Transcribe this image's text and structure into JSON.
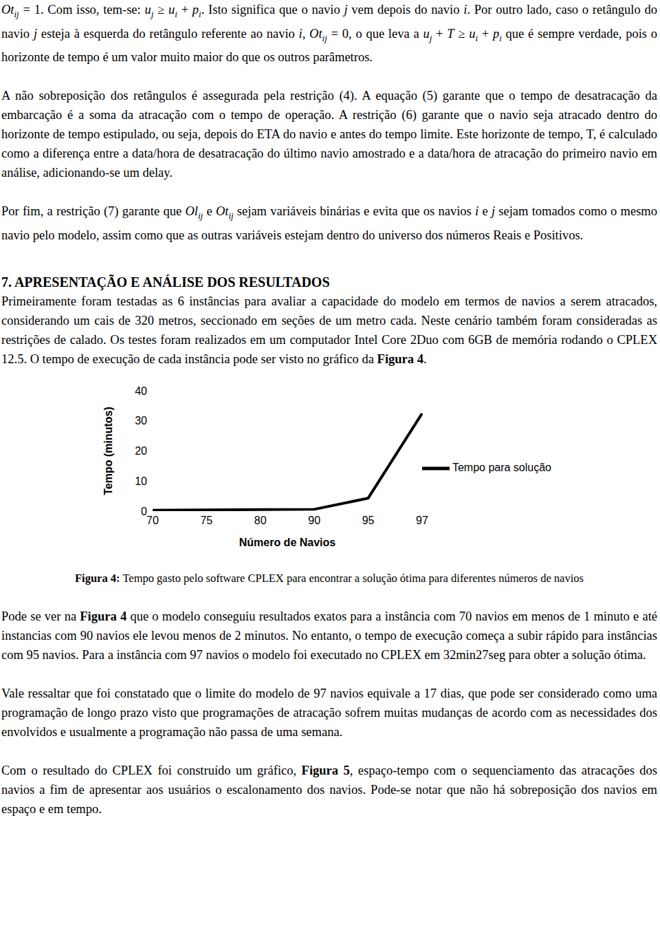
{
  "document": {
    "paragraphs_before": [
      [
        {
          "m": "Ot",
          "sub": "ij"
        },
        " = 1. Com isso, tem-se: ",
        {
          "m": "u",
          "sub": "j"
        },
        " ≥ ",
        {
          "m": "u",
          "sub": "i"
        },
        " + ",
        {
          "m": "p",
          "sub": "i"
        },
        ". Isto significa que o navio ",
        {
          "m": "j"
        },
        " vem depois do navio ",
        {
          "m": "i"
        },
        ". Por outro lado, caso o retângulo do navio ",
        {
          "m": "j"
        },
        " esteja à esquerda do retângulo referente ao navio ",
        {
          "m": "i"
        },
        ", ",
        {
          "m": "Ot",
          "sub": "ij"
        },
        " = 0, o que leva a ",
        {
          "m": "u",
          "sub": "j"
        },
        " + ",
        {
          "m": "T"
        },
        " ≥ ",
        {
          "m": "u",
          "sub": "i"
        },
        " + ",
        {
          "m": "p",
          "sub": "i"
        },
        " que é sempre verdade, pois o horizonte de tempo é um valor muito maior do que os outros parâmetros."
      ],
      [
        "A não sobreposição dos retângulos é assegurada pela restrição (4). A equação (5) garante que o tempo de desatracação da embarcação é a soma da atracação com o tempo de operação. A restrição (6) garante que o navio seja atracado dentro do horizonte de tempo estipulado, ou seja, depois do ETA do navio e antes do tempo limite. Este horizonte de tempo, T, é calculado como a diferença entre a data/hora de desatracação do último navio amostrado e a data/hora de atracação do primeiro navio em análise, adicionando-se um delay."
      ],
      [
        "Por fim, a restrição (7) garante que ",
        {
          "m": "Ol",
          "sub": "ij"
        },
        " e ",
        {
          "m": "Ot",
          "sub": "ij"
        },
        " sejam variáveis binárias e evita que os navios ",
        {
          "m": "i"
        },
        " e ",
        {
          "m": "j"
        },
        " sejam tomados como o mesmo navio pelo modelo, assim como que as outras variáveis estejam dentro do universo dos números Reais e Positivos."
      ]
    ],
    "heading": "7. APRESENTAÇÃO E ANÁLISE DOS RESULTADOS",
    "paragraph_after_heading": [
      "Primeiramente foram testadas as 6 instâncias para avaliar a capacidade do modelo em termos de navios a serem atracados, considerando um cais de 320 metros, seccionado em seções de um metro cada. Neste cenário também foram consideradas as restrições de calado. Os testes foram realizados em um computador Intel Core 2Duo com 6GB de memória rodando o CPLEX 12.5. O tempo de execução de cada instância pode ser visto no gráfico da ",
      {
        "b": "Figura 4"
      },
      "."
    ],
    "caption": [
      {
        "b": "Figura 4:"
      },
      " Tempo gasto pelo software CPLEX para encontrar a solução ótima para diferentes números de navios"
    ],
    "paragraphs_after": [
      [
        "Pode se ver na ",
        {
          "b": "Figura 4"
        },
        " que o modelo conseguiu resultados exatos para a instância com 70 navios em menos de 1 minuto e até instancias com 90 navios ele levou menos de 2 minutos. No entanto, o tempo de execução começa a subir rápido para instâncias com 95 navios. Para a instância com 97 navios o modelo foi executado no CPLEX em 32min27seg para obter a solução ótima."
      ],
      [
        "Vale ressaltar que foi constatado que o limite do modelo de 97 navios equivale a 17 dias, que pode ser considerado como uma programação de longo prazo visto que programações de atracação sofrem muitas mudanças de acordo com as necessidades dos envolvidos e usualmente a programação não passa de uma semana."
      ],
      [
        "Com o resultado do CPLEX foi construído um gráfico, ",
        {
          "b": "Figura 5"
        },
        ", espaço-tempo com o sequenciamento das atracações dos navios a fim de apresentar aos usuários o escalonamento dos navios. Pode-se notar que não há sobreposição dos navios em espaço e em tempo."
      ]
    ]
  },
  "chart_data": {
    "type": "line",
    "x_label": "Número de Navios",
    "y_label": "Tempo (minutos)",
    "categories": [
      "70",
      "75",
      "80",
      "90",
      "95",
      "97"
    ],
    "series": [
      {
        "name": "Tempo para solução",
        "color": "#000000",
        "values": [
          0.3,
          0.4,
          0.5,
          0.6,
          4.3,
          32.45
        ]
      }
    ],
    "ylim": [
      0,
      40
    ],
    "yticks": [
      0,
      10,
      20,
      30,
      40
    ],
    "grid": false,
    "legend": "right"
  }
}
